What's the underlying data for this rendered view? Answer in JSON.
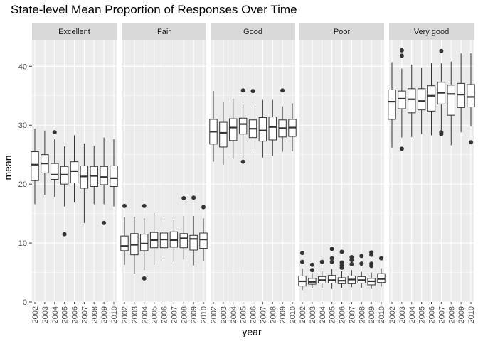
{
  "chart_data": {
    "type": "boxplot",
    "title": "State-level Mean Proportion of Responses Over Time",
    "xlabel": "year",
    "ylabel": "mean",
    "ylim": [
      0,
      44.5
    ],
    "yticks": [
      0,
      10,
      20,
      30,
      40
    ],
    "years": [
      "2002",
      "2003",
      "2004",
      "2005",
      "2006",
      "2007",
      "2008",
      "2009",
      "2010"
    ],
    "grid": true,
    "colors": {
      "panel_bg": "#ebebeb",
      "grid": "#ffffff",
      "strip_bg": "#d9d9d9",
      "box_fill": "#ffffff",
      "box_line": "#333333"
    },
    "facets": [
      {
        "name": "Excellent",
        "boxes": [
          {
            "lo": 16.6,
            "q1": 20.6,
            "med": 23.3,
            "q3": 25.5,
            "hi": 29.4,
            "out": []
          },
          {
            "lo": 18.2,
            "q1": 21.9,
            "med": 23.5,
            "q3": 25.0,
            "hi": 29.1,
            "out": []
          },
          {
            "lo": 17.8,
            "q1": 20.8,
            "med": 21.6,
            "q3": 23.5,
            "hi": 27.6,
            "out": [
              28.8
            ]
          },
          {
            "lo": 16.2,
            "q1": 20.0,
            "med": 21.6,
            "q3": 23.0,
            "hi": 26.4,
            "out": [
              11.5
            ]
          },
          {
            "lo": 16.9,
            "q1": 20.2,
            "med": 22.2,
            "q3": 23.8,
            "hi": 28.3,
            "out": []
          },
          {
            "lo": 13.4,
            "q1": 19.3,
            "med": 21.3,
            "q3": 23.1,
            "hi": 26.9,
            "out": []
          },
          {
            "lo": 16.6,
            "q1": 19.6,
            "med": 21.4,
            "q3": 23.0,
            "hi": 26.5,
            "out": []
          },
          {
            "lo": 16.6,
            "q1": 19.9,
            "med": 21.2,
            "q3": 23.0,
            "hi": 27.9,
            "out": [
              13.4
            ]
          },
          {
            "lo": 16.2,
            "q1": 19.6,
            "med": 21.0,
            "q3": 23.1,
            "hi": 27.6,
            "out": []
          }
        ]
      },
      {
        "name": "Fair",
        "boxes": [
          {
            "lo": 6.3,
            "q1": 8.7,
            "med": 9.5,
            "q3": 11.2,
            "hi": 14.4,
            "out": [
              16.3
            ]
          },
          {
            "lo": 4.8,
            "q1": 8.0,
            "med": 9.7,
            "q3": 11.6,
            "hi": 14.5,
            "out": []
          },
          {
            "lo": 5.4,
            "q1": 8.7,
            "med": 9.9,
            "q3": 11.5,
            "hi": 14.2,
            "out": [
              16.3,
              4.0
            ]
          },
          {
            "lo": 6.3,
            "q1": 9.2,
            "med": 10.5,
            "q3": 11.8,
            "hi": 15.1,
            "out": []
          },
          {
            "lo": 7.0,
            "q1": 9.2,
            "med": 10.6,
            "q3": 11.7,
            "hi": 13.8,
            "out": []
          },
          {
            "lo": 6.8,
            "q1": 9.3,
            "med": 10.5,
            "q3": 11.9,
            "hi": 13.9,
            "out": []
          },
          {
            "lo": 7.2,
            "q1": 9.2,
            "med": 10.8,
            "q3": 11.6,
            "hi": 14.6,
            "out": [
              17.6
            ]
          },
          {
            "lo": 6.2,
            "q1": 8.8,
            "med": 10.7,
            "q3": 11.3,
            "hi": 14.6,
            "out": [
              17.7
            ]
          },
          {
            "lo": 6.9,
            "q1": 9.1,
            "med": 10.6,
            "q3": 11.7,
            "hi": 14.2,
            "out": [
              16.1
            ]
          }
        ]
      },
      {
        "name": "Good",
        "boxes": [
          {
            "lo": 23.8,
            "q1": 26.8,
            "med": 28.9,
            "q3": 31.0,
            "hi": 35.8,
            "out": []
          },
          {
            "lo": 23.3,
            "q1": 26.3,
            "med": 28.7,
            "q3": 30.5,
            "hi": 33.9,
            "out": []
          },
          {
            "lo": 24.3,
            "q1": 27.4,
            "med": 29.6,
            "q3": 31.1,
            "hi": 34.5,
            "out": []
          },
          {
            "lo": 24.5,
            "q1": 28.5,
            "med": 30.2,
            "q3": 31.2,
            "hi": 33.5,
            "out": [
              35.9,
              23.8
            ]
          },
          {
            "lo": 25.5,
            "q1": 27.9,
            "med": 29.4,
            "q3": 30.9,
            "hi": 33.3,
            "out": [
              35.8
            ]
          },
          {
            "lo": 24.5,
            "q1": 27.3,
            "med": 29.1,
            "q3": 31.3,
            "hi": 34.3,
            "out": []
          },
          {
            "lo": 24.8,
            "q1": 27.5,
            "med": 29.7,
            "q3": 31.4,
            "hi": 34.3,
            "out": []
          },
          {
            "lo": 25.5,
            "q1": 28.0,
            "med": 29.5,
            "q3": 30.9,
            "hi": 33.2,
            "out": [
              35.9
            ]
          },
          {
            "lo": 25.6,
            "q1": 28.1,
            "med": 29.6,
            "q3": 31.0,
            "hi": 33.7,
            "out": []
          }
        ]
      },
      {
        "name": "Poor",
        "boxes": [
          {
            "lo": 2.0,
            "q1": 2.7,
            "med": 3.5,
            "q3": 4.4,
            "hi": 5.7,
            "out": [
              8.3,
              6.8
            ]
          },
          {
            "lo": 2.3,
            "q1": 3.0,
            "med": 3.4,
            "q3": 4.0,
            "hi": 4.9,
            "out": [
              6.3,
              5.4
            ]
          },
          {
            "lo": 2.4,
            "q1": 3.2,
            "med": 3.7,
            "q3": 4.3,
            "hi": 5.2,
            "out": [
              6.8
            ]
          },
          {
            "lo": 2.2,
            "q1": 3.2,
            "med": 3.7,
            "q3": 4.5,
            "hi": 5.6,
            "out": [
              9.0,
              7.4,
              6.8
            ]
          },
          {
            "lo": 2.4,
            "q1": 3.1,
            "med": 3.6,
            "q3": 4.1,
            "hi": 5.2,
            "out": [
              8.5,
              6.7,
              6.2,
              5.8
            ]
          },
          {
            "lo": 2.5,
            "q1": 3.1,
            "med": 3.8,
            "q3": 4.4,
            "hi": 5.4,
            "out": [
              7.6,
              7.1,
              6.4
            ]
          },
          {
            "lo": 2.4,
            "q1": 3.2,
            "med": 3.7,
            "q3": 4.3,
            "hi": 5.1,
            "out": [
              7.8,
              6.5
            ]
          },
          {
            "lo": 2.2,
            "q1": 2.9,
            "med": 3.5,
            "q3": 4.0,
            "hi": 5.0,
            "out": [
              8.4,
              8.0,
              6.5,
              6.1
            ]
          },
          {
            "lo": 2.6,
            "q1": 3.3,
            "med": 3.9,
            "q3": 4.8,
            "hi": 5.7,
            "out": [
              7.4
            ]
          }
        ]
      },
      {
        "name": "Very good",
        "boxes": [
          {
            "lo": 26.2,
            "q1": 31.0,
            "med": 34.0,
            "q3": 36.0,
            "hi": 40.7,
            "out": []
          },
          {
            "lo": 27.9,
            "q1": 32.8,
            "med": 34.5,
            "q3": 35.8,
            "hi": 39.6,
            "out": [
              42.7,
              41.8,
              26.0
            ]
          },
          {
            "lo": 28.0,
            "q1": 32.1,
            "med": 34.4,
            "q3": 36.2,
            "hi": 40.3,
            "out": []
          },
          {
            "lo": 28.5,
            "q1": 32.6,
            "med": 34.1,
            "q3": 36.2,
            "hi": 39.7,
            "out": []
          },
          {
            "lo": 28.3,
            "q1": 32.4,
            "med": 35.0,
            "q3": 36.7,
            "hi": 40.6,
            "out": []
          },
          {
            "lo": 29.2,
            "q1": 33.6,
            "med": 35.5,
            "q3": 37.3,
            "hi": 40.5,
            "out": [
              42.6,
              28.8,
              28.5
            ]
          },
          {
            "lo": 26.6,
            "q1": 31.7,
            "med": 35.3,
            "q3": 36.8,
            "hi": 40.8,
            "out": []
          },
          {
            "lo": 28.8,
            "q1": 33.0,
            "med": 35.2,
            "q3": 37.1,
            "hi": 42.2,
            "out": []
          },
          {
            "lo": 29.8,
            "q1": 33.1,
            "med": 34.8,
            "q3": 36.9,
            "hi": 42.2,
            "out": [
              27.1
            ]
          }
        ]
      }
    ]
  }
}
